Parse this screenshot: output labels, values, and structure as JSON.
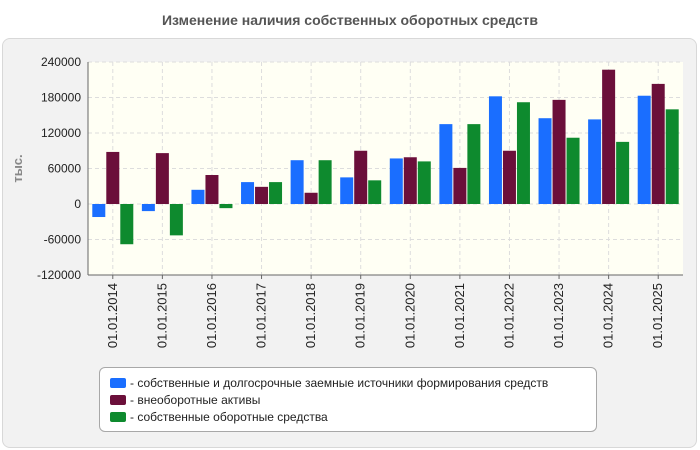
{
  "chart_data": {
    "type": "bar",
    "title": "Изменение наличия собственных оборотных средств",
    "ylabel": "тыс.",
    "xlabel": "",
    "ylim": [
      -120000,
      240000
    ],
    "yticks": [
      -120000,
      -60000,
      0,
      60000,
      120000,
      180000,
      240000
    ],
    "ytick_labels": [
      "-120000",
      "-60000",
      "0",
      "60000",
      "120000",
      "180000",
      "240000"
    ],
    "categories": [
      "01.01.2014",
      "01.01.2015",
      "01.01.2016",
      "01.01.2017",
      "01.01.2018",
      "01.01.2019",
      "01.01.2020",
      "01.01.2021",
      "01.01.2022",
      "01.01.2023",
      "01.01.2024",
      "01.01.2025"
    ],
    "series": [
      {
        "name": "- собственные и долгосрочные заемные источники формирования средств",
        "color": "#1a6eff",
        "values": [
          -22000,
          -12000,
          24000,
          37000,
          74000,
          45000,
          77000,
          135000,
          182000,
          145000,
          143000,
          183000
        ]
      },
      {
        "name": "- внеоборотные активы",
        "color": "#6b0f3a",
        "values": [
          88000,
          86000,
          49000,
          29000,
          19000,
          90000,
          79000,
          61000,
          90000,
          176000,
          227000,
          203000
        ]
      },
      {
        "name": "- собственные оборотные средства",
        "color": "#0e8a2e",
        "values": [
          -68000,
          -53000,
          -7000,
          37000,
          74000,
          40000,
          72000,
          135000,
          172000,
          112000,
          105000,
          160000
        ]
      }
    ],
    "grid": true,
    "legend_position": "bottom"
  }
}
